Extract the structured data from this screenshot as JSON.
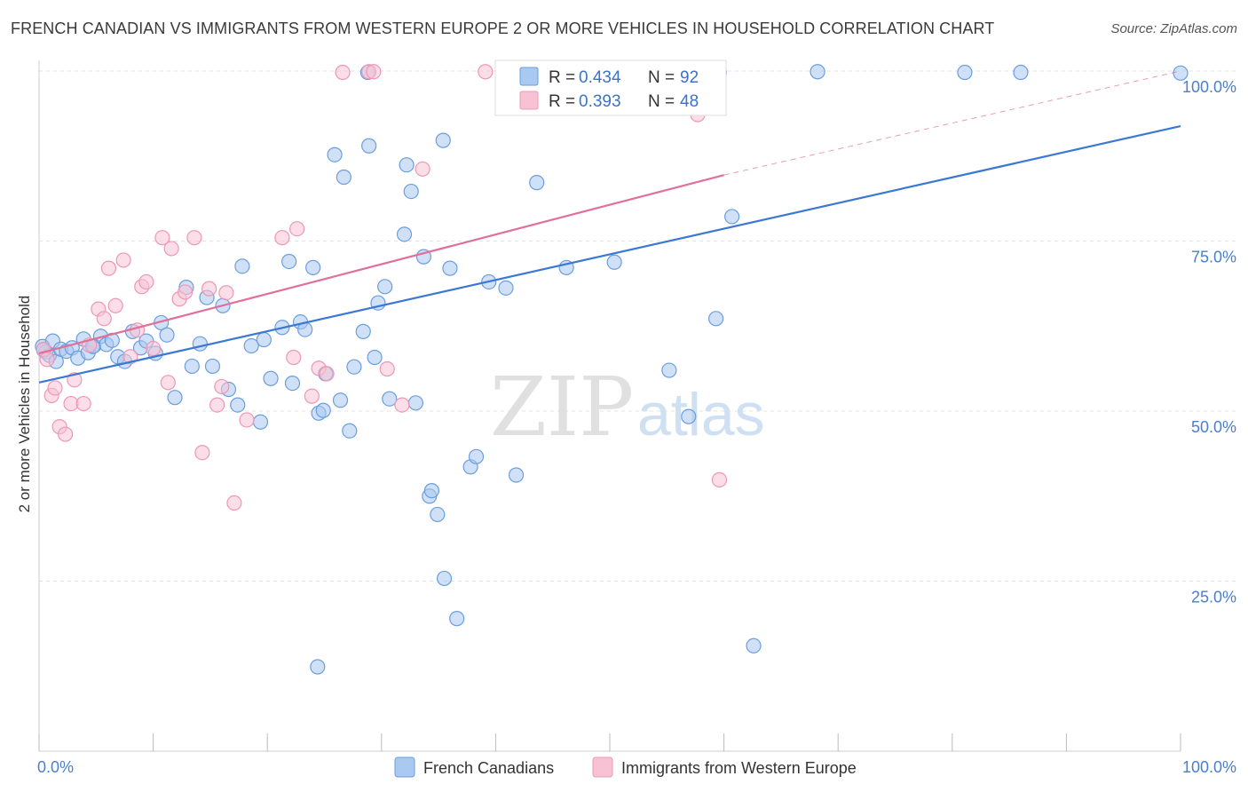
{
  "header": {
    "title": "FRENCH CANADIAN VS IMMIGRANTS FROM WESTERN EUROPE 2 OR MORE VEHICLES IN HOUSEHOLD CORRELATION CHART",
    "source": "Source: ZipAtlas.com"
  },
  "watermark": {
    "zip": "ZIP",
    "atlas": "atlas"
  },
  "stats": {
    "r_label": "R =",
    "n_label": "N =",
    "rows": [
      {
        "r": "0.434",
        "n": "92"
      },
      {
        "r": "0.393",
        "n": "48"
      }
    ]
  },
  "chart_data": {
    "type": "scatter",
    "title": "FRENCH CANADIAN VS IMMIGRANTS FROM WESTERN EUROPE 2 OR MORE VEHICLES IN HOUSEHOLD CORRELATION CHART",
    "xlabel": "",
    "ylabel": "2 or more Vehicles in Household",
    "xlim": [
      0,
      100
    ],
    "ylim": [
      0,
      100
    ],
    "x_tick_labels": [
      "0.0%",
      "100.0%"
    ],
    "y_ticks": [
      25,
      50,
      75,
      100
    ],
    "y_tick_labels": [
      "25.0%",
      "50.0%",
      "75.0%",
      "100.0%"
    ],
    "grid": true,
    "legend_position": "bottom",
    "colors": {
      "french_canadians_fill": "#a9c9f0",
      "french_canadians_stroke": "#6a9ee0",
      "french_canadians_line": "#3a78d4",
      "immigrants_fill": "#f7c3d4",
      "immigrants_stroke": "#ee97b5",
      "immigrants_line": "#e0709a"
    },
    "series": [
      {
        "name": "French Canadians",
        "r": 0.434,
        "n": 92,
        "trend": {
          "x": [
            0,
            100
          ],
          "y": [
            54.2,
            91.9
          ]
        },
        "points": [
          [
            0.3,
            59.5
          ],
          [
            0.6,
            58.7
          ],
          [
            0.9,
            58.2
          ],
          [
            1.2,
            60.3
          ],
          [
            1.5,
            57.3
          ],
          [
            1.9,
            59.1
          ],
          [
            2.4,
            58.8
          ],
          [
            2.9,
            59.3
          ],
          [
            3.4,
            57.8
          ],
          [
            3.9,
            60.6
          ],
          [
            4.3,
            58.6
          ],
          [
            4.8,
            59.6
          ],
          [
            5.4,
            61.0
          ],
          [
            5.9,
            59.8
          ],
          [
            6.4,
            60.4
          ],
          [
            6.9,
            58.0
          ],
          [
            7.5,
            57.3
          ],
          [
            8.2,
            61.7
          ],
          [
            8.9,
            59.3
          ],
          [
            9.4,
            60.3
          ],
          [
            10.2,
            58.5
          ],
          [
            10.7,
            63.0
          ],
          [
            11.2,
            61.2
          ],
          [
            11.9,
            52.0
          ],
          [
            12.9,
            68.2
          ],
          [
            13.4,
            56.6
          ],
          [
            14.1,
            59.9
          ],
          [
            14.7,
            66.7
          ],
          [
            15.2,
            56.6
          ],
          [
            16.1,
            65.5
          ],
          [
            16.6,
            53.2
          ],
          [
            17.4,
            50.9
          ],
          [
            17.8,
            71.3
          ],
          [
            18.6,
            59.6
          ],
          [
            19.4,
            48.4
          ],
          [
            19.7,
            60.5
          ],
          [
            20.3,
            54.8
          ],
          [
            21.3,
            62.3
          ],
          [
            21.9,
            72.0
          ],
          [
            22.2,
            54.1
          ],
          [
            22.9,
            63.1
          ],
          [
            23.3,
            62.0
          ],
          [
            24.0,
            71.1
          ],
          [
            24.5,
            49.7
          ],
          [
            24.9,
            50.1
          ],
          [
            24.4,
            12.4
          ],
          [
            25.1,
            55.5
          ],
          [
            25.9,
            87.7
          ],
          [
            26.4,
            51.6
          ],
          [
            26.7,
            84.4
          ],
          [
            27.2,
            47.1
          ],
          [
            27.6,
            56.5
          ],
          [
            28.4,
            61.7
          ],
          [
            28.8,
            99.8
          ],
          [
            28.9,
            89.0
          ],
          [
            29.7,
            65.9
          ],
          [
            30.3,
            68.3
          ],
          [
            29.4,
            57.9
          ],
          [
            30.7,
            51.8
          ],
          [
            32.0,
            76.0
          ],
          [
            32.2,
            86.2
          ],
          [
            32.6,
            82.3
          ],
          [
            33.0,
            51.2
          ],
          [
            33.7,
            72.7
          ],
          [
            34.2,
            37.5
          ],
          [
            34.4,
            38.3
          ],
          [
            34.9,
            34.8
          ],
          [
            35.4,
            89.8
          ],
          [
            35.5,
            25.4
          ],
          [
            36.0,
            71.0
          ],
          [
            36.6,
            19.5
          ],
          [
            37.8,
            41.8
          ],
          [
            38.3,
            43.3
          ],
          [
            39.4,
            69.0
          ],
          [
            40.9,
            68.1
          ],
          [
            41.8,
            40.6
          ],
          [
            43.6,
            83.6
          ],
          [
            46.2,
            71.1
          ],
          [
            50.4,
            71.9
          ],
          [
            55.2,
            56.0
          ],
          [
            56.9,
            49.2
          ],
          [
            59.3,
            63.6
          ],
          [
            59.6,
            99.8
          ],
          [
            60.7,
            78.6
          ],
          [
            68.2,
            99.9
          ],
          [
            81.1,
            99.8
          ],
          [
            86.0,
            99.8
          ],
          [
            100.0,
            99.7
          ],
          [
            49.3,
            99.7
          ],
          [
            62.6,
            15.5
          ],
          [
            4.7,
            59.5
          ],
          [
            0.4,
            59.0
          ]
        ]
      },
      {
        "name": "Immigrants from Western Europe",
        "r": 0.393,
        "n": 48,
        "trend": {
          "x": [
            0,
            60
          ],
          "y": [
            58.5,
            84.7
          ]
        },
        "trend_dashed": {
          "x": [
            60,
            100
          ],
          "y": [
            84.7,
            100.0
          ]
        },
        "points": [
          [
            0.4,
            59.1
          ],
          [
            0.7,
            57.6
          ],
          [
            1.1,
            52.3
          ],
          [
            1.4,
            53.4
          ],
          [
            1.8,
            47.7
          ],
          [
            2.3,
            46.6
          ],
          [
            2.8,
            51.1
          ],
          [
            3.1,
            54.6
          ],
          [
            3.9,
            51.1
          ],
          [
            4.4,
            59.7
          ],
          [
            5.2,
            65.0
          ],
          [
            5.7,
            63.6
          ],
          [
            6.1,
            71.0
          ],
          [
            6.7,
            65.5
          ],
          [
            7.4,
            72.2
          ],
          [
            8.0,
            58.0
          ],
          [
            8.6,
            61.9
          ],
          [
            9.0,
            68.3
          ],
          [
            9.4,
            69.0
          ],
          [
            10.0,
            59.2
          ],
          [
            10.8,
            75.5
          ],
          [
            11.3,
            54.2
          ],
          [
            11.6,
            73.9
          ],
          [
            12.3,
            66.5
          ],
          [
            12.8,
            67.5
          ],
          [
            13.6,
            75.5
          ],
          [
            14.3,
            43.9
          ],
          [
            14.9,
            68.0
          ],
          [
            15.6,
            50.9
          ],
          [
            16.0,
            53.6
          ],
          [
            16.4,
            67.4
          ],
          [
            17.1,
            36.5
          ],
          [
            18.2,
            48.7
          ],
          [
            21.3,
            75.5
          ],
          [
            22.3,
            57.9
          ],
          [
            22.6,
            76.8
          ],
          [
            23.9,
            52.2
          ],
          [
            24.5,
            56.3
          ],
          [
            25.2,
            55.5
          ],
          [
            26.6,
            99.8
          ],
          [
            28.9,
            99.9
          ],
          [
            29.3,
            99.9
          ],
          [
            30.5,
            56.2
          ],
          [
            31.8,
            50.9
          ],
          [
            33.6,
            85.6
          ],
          [
            39.1,
            99.9
          ],
          [
            57.7,
            93.6
          ],
          [
            59.6,
            39.9
          ]
        ]
      }
    ]
  },
  "legend": {
    "items": [
      {
        "label": "French Canadians"
      },
      {
        "label": "Immigrants from Western Europe"
      }
    ]
  }
}
